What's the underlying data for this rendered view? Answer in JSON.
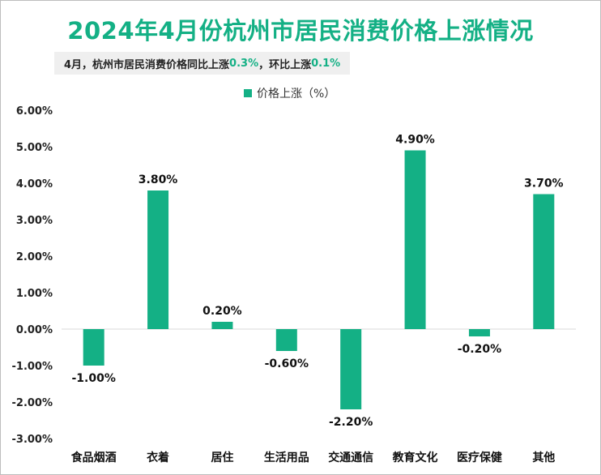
{
  "title": "2024年4月份杭州市居民消费价格上涨情况",
  "subtitle": {
    "prefix": "4月，杭州市居民消费价格同比上涨",
    "yoy": "0.3%",
    "middle": "，环比上涨",
    "mom": "0.1%"
  },
  "colors": {
    "accent": "#14b085"
  },
  "chart_data": {
    "type": "bar",
    "categories": [
      "食品烟酒",
      "衣着",
      "居住",
      "生活用品",
      "交通通信",
      "教育文化",
      "医疗保健",
      "其他"
    ],
    "series": [
      {
        "name": "价格上涨（%）",
        "values": [
          -1.0,
          3.8,
          0.2,
          -0.6,
          -2.2,
          4.9,
          -0.2,
          3.7
        ]
      }
    ],
    "data_labels": [
      "-1.00%",
      "3.80%",
      "0.20%",
      "-0.60%",
      "-2.20%",
      "4.90%",
      "-0.20%",
      "3.70%"
    ],
    "yticks": [
      "6.00%",
      "5.00%",
      "4.00%",
      "3.00%",
      "2.00%",
      "1.00%",
      "0.00%",
      "-1.00%",
      "-2.00%",
      "-3.00%"
    ],
    "ylim": [
      -3,
      6
    ],
    "legend_position": "top-center",
    "grid": false
  }
}
